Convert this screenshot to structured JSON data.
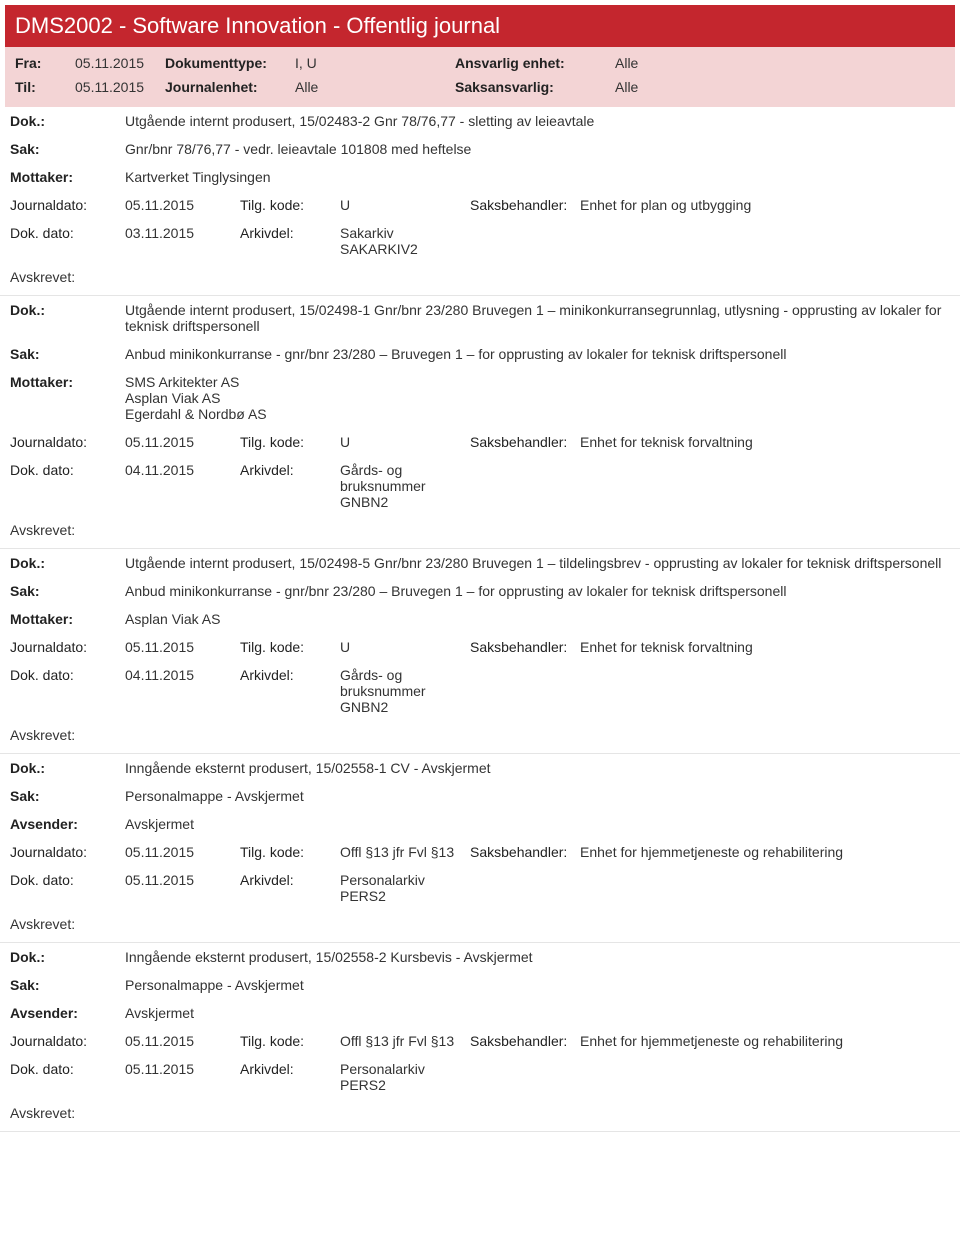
{
  "banner": {
    "title": "DMS2002 - Software Innovation - Offentlig journal"
  },
  "filters": {
    "fra_label": "Fra:",
    "fra": "05.11.2015",
    "til_label": "Til:",
    "til": "05.11.2015",
    "doktype_label": "Dokumenttype:",
    "doktype": "I, U",
    "journalenhet_label": "Journalenhet:",
    "journalenhet": "Alle",
    "ansvarlig_label": "Ansvarlig enhet:",
    "ansvarlig": "Alle",
    "saksansvarlig_label": "Saksansvarlig:",
    "saksansvarlig": "Alle"
  },
  "labels": {
    "dok": "Dok.:",
    "sak": "Sak:",
    "mottaker": "Mottaker:",
    "avsender": "Avsender:",
    "journaldato": "Journaldato:",
    "tilgkode": "Tilg. kode:",
    "saksbehandler": "Saksbehandler:",
    "dokdato": "Dok. dato:",
    "arkivdel": "Arkivdel:",
    "avskrevet": "Avskrevet:"
  },
  "entries": [
    {
      "dok": "Utgående internt produsert, 15/02483-2 Gnr 78/76,77 - sletting av leieavtale",
      "sak": "Gnr/bnr 78/76,77 - vedr. leieavtale 101808 med heftelse",
      "part_label": "Mottaker:",
      "part": "Kartverket Tinglysingen",
      "journaldato": "05.11.2015",
      "tilgkode": "U",
      "saksbehandler": "Enhet for plan og utbygging",
      "dokdato": "03.11.2015",
      "arkivdel": "Sakarkiv\nSAKARKIV2"
    },
    {
      "dok": "Utgående internt produsert, 15/02498-1 Gnr/bnr 23/280 Bruvegen 1 – minikonkurransegrunnlag, utlysning - opprusting av lokaler for teknisk driftspersonell",
      "sak": "Anbud minikonkurranse - gnr/bnr 23/280 – Bruvegen 1 –  for opprusting av lokaler for teknisk driftspersonell",
      "part_label": "Mottaker:",
      "part": "SMS Arkitekter AS\nAsplan Viak AS\nEgerdahl & Nordbø AS",
      "journaldato": "05.11.2015",
      "tilgkode": "U",
      "saksbehandler": "Enhet for teknisk forvaltning",
      "dokdato": "04.11.2015",
      "arkivdel": "Gårds- og bruksnummer\nGNBN2"
    },
    {
      "dok": "Utgående internt produsert, 15/02498-5 Gnr/bnr 23/280 Bruvegen 1 – tildelingsbrev - opprusting av lokaler for teknisk driftspersonell",
      "sak": "Anbud minikonkurranse - gnr/bnr 23/280 – Bruvegen 1 –  for opprusting av lokaler for teknisk driftspersonell",
      "part_label": "Mottaker:",
      "part": "Asplan Viak AS",
      "journaldato": "05.11.2015",
      "tilgkode": "U",
      "saksbehandler": "Enhet for teknisk forvaltning",
      "dokdato": "04.11.2015",
      "arkivdel": "Gårds- og bruksnummer\nGNBN2"
    },
    {
      "dok": "Inngående eksternt produsert, 15/02558-1 CV - Avskjermet",
      "sak": "Personalmappe - Avskjermet",
      "part_label": "Avsender:",
      "part": "Avskjermet",
      "journaldato": "05.11.2015",
      "tilgkode": "Offl §13 jfr Fvl §13",
      "saksbehandler": "Enhet for hjemmetjeneste og rehabilitering",
      "dokdato": "05.11.2015",
      "arkivdel": "Personalarkiv\nPERS2"
    },
    {
      "dok": "Inngående eksternt produsert, 15/02558-2 Kursbevis - Avskjermet",
      "sak": "Personalmappe - Avskjermet",
      "part_label": "Avsender:",
      "part": "Avskjermet",
      "journaldato": "05.11.2015",
      "tilgkode": "Offl §13 jfr Fvl §13",
      "saksbehandler": "Enhet for hjemmetjeneste og rehabilitering",
      "dokdato": "05.11.2015",
      "arkivdel": "Personalarkiv\nPERS2"
    }
  ]
}
